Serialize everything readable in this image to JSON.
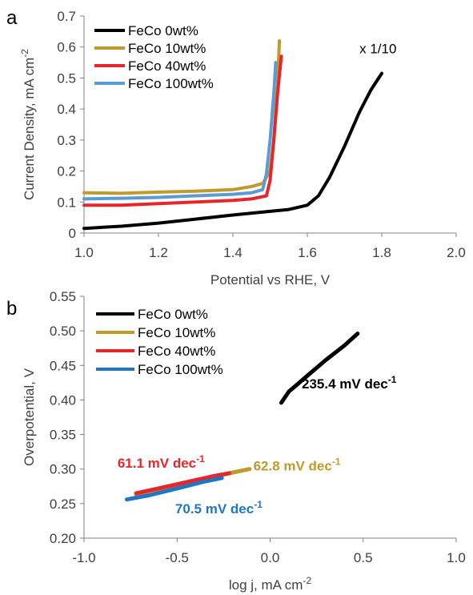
{
  "chart_data": [
    {
      "panel_label": "a",
      "type": "line",
      "xlabel": "Potential vs RHE, V",
      "ylabel": "Current Density, mA cm",
      "ylabel_sup": "-2",
      "xlim": [
        1.0,
        2.0
      ],
      "ylim": [
        0,
        0.7
      ],
      "xticks": [
        1.0,
        1.2,
        1.4,
        1.6,
        1.8,
        2.0
      ],
      "xtick_labels": [
        "1.0",
        "1.2",
        "1.4",
        "1.6",
        "1.8",
        "2.0"
      ],
      "yticks": [
        0,
        0.1,
        0.2,
        0.3,
        0.4,
        0.5,
        0.6,
        0.7
      ],
      "ytick_labels": [
        "0",
        "0.1",
        "0.2",
        "0.3",
        "0.4",
        "0.5",
        "0.6",
        "0.7"
      ],
      "grid": false,
      "legend_position": "top-left",
      "annotations": [
        {
          "text": "x 1/10",
          "x": 1.74,
          "y": 0.58
        }
      ],
      "series": [
        {
          "name": "FeCo 0wt%",
          "color": "#000000",
          "x": [
            1.0,
            1.1,
            1.2,
            1.3,
            1.4,
            1.5,
            1.55,
            1.6,
            1.63,
            1.66,
            1.7,
            1.74,
            1.77,
            1.8
          ],
          "y": [
            0.015,
            0.022,
            0.032,
            0.045,
            0.058,
            0.07,
            0.076,
            0.09,
            0.12,
            0.18,
            0.28,
            0.39,
            0.46,
            0.515
          ]
        },
        {
          "name": "FeCo 10wt%",
          "color": "#c09a2a",
          "x": [
            1.0,
            1.1,
            1.2,
            1.3,
            1.4,
            1.45,
            1.48,
            1.5,
            1.51,
            1.52,
            1.525
          ],
          "y": [
            0.13,
            0.128,
            0.132,
            0.135,
            0.14,
            0.15,
            0.16,
            0.2,
            0.3,
            0.48,
            0.62
          ]
        },
        {
          "name": "FeCo 40wt%",
          "color": "#e8252b",
          "x": [
            1.0,
            1.1,
            1.2,
            1.3,
            1.4,
            1.45,
            1.49,
            1.5,
            1.51,
            1.52,
            1.53
          ],
          "y": [
            0.09,
            0.09,
            0.095,
            0.1,
            0.105,
            0.11,
            0.12,
            0.17,
            0.3,
            0.45,
            0.57
          ]
        },
        {
          "name": "FeCo 100wt%",
          "color": "#5b9bd5",
          "x": [
            1.0,
            1.1,
            1.2,
            1.3,
            1.4,
            1.45,
            1.48,
            1.49,
            1.5,
            1.51,
            1.515
          ],
          "y": [
            0.11,
            0.112,
            0.115,
            0.12,
            0.125,
            0.13,
            0.14,
            0.19,
            0.3,
            0.45,
            0.55
          ]
        }
      ]
    },
    {
      "panel_label": "b",
      "type": "line",
      "xlabel": "log j, mA cm",
      "xlabel_sup": "-2",
      "ylabel": "Overpotential, V",
      "xlim": [
        -1.0,
        1.0
      ],
      "ylim": [
        0.2,
        0.55
      ],
      "xticks": [
        -1.0,
        -0.5,
        0.0,
        0.5,
        1.0
      ],
      "xtick_labels": [
        "-1.0",
        "-0.5",
        "0.0",
        "0.5",
        "1.0"
      ],
      "yticks": [
        0.2,
        0.25,
        0.3,
        0.35,
        0.4,
        0.45,
        0.5,
        0.55
      ],
      "ytick_labels": [
        "0.20",
        "0.25",
        "0.30",
        "0.35",
        "0.40",
        "0.45",
        "0.50",
        "0.55"
      ],
      "grid": false,
      "legend_position": "top-left",
      "annotations": [
        {
          "text": "235.4 mV dec",
          "sup": "-1",
          "color": "#000000",
          "x": 0.17,
          "y": 0.417
        },
        {
          "text": "61.1 mV dec",
          "sup": "-1",
          "color": "#e8252b",
          "x": -0.82,
          "y": 0.302
        },
        {
          "text": "62.8 mV dec",
          "sup": "-1",
          "color": "#c09a2a",
          "x": -0.09,
          "y": 0.298
        },
        {
          "text": "70.5 mV dec",
          "sup": "-1",
          "color": "#1f77c4",
          "x": -0.51,
          "y": 0.236
        }
      ],
      "series": [
        {
          "name": "FeCo 0wt%",
          "color": "#000000",
          "x": [
            0.06,
            0.1,
            0.2,
            0.3,
            0.4,
            0.47
          ],
          "y": [
            0.396,
            0.412,
            0.435,
            0.458,
            0.479,
            0.496
          ]
        },
        {
          "name": "FeCo 10wt%",
          "color": "#c09a2a",
          "x": [
            -0.72,
            -0.6,
            -0.4,
            -0.2,
            -0.11
          ],
          "y": [
            0.262,
            0.27,
            0.283,
            0.295,
            0.3
          ]
        },
        {
          "name": "FeCo 40wt%",
          "color": "#e8252b",
          "x": [
            -0.72,
            -0.6,
            -0.45,
            -0.3,
            -0.22
          ],
          "y": [
            0.265,
            0.272,
            0.281,
            0.29,
            0.294
          ]
        },
        {
          "name": "FeCo 100wt%",
          "color": "#1f77c4",
          "x": [
            -0.77,
            -0.65,
            -0.5,
            -0.35,
            -0.26
          ],
          "y": [
            0.256,
            0.262,
            0.272,
            0.282,
            0.287
          ]
        }
      ]
    }
  ]
}
